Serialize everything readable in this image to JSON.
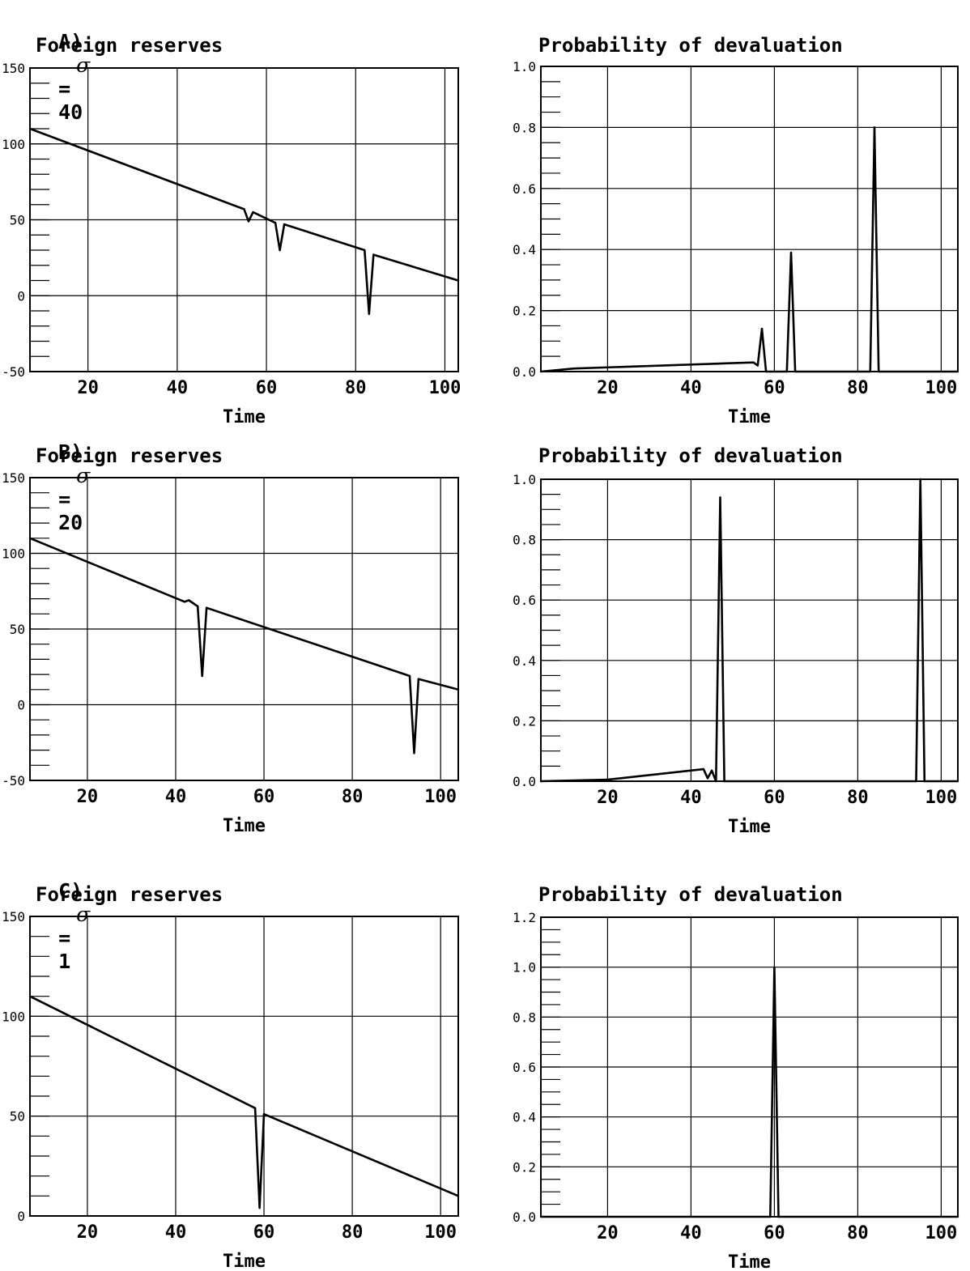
{
  "panels": [
    {
      "label": "A)",
      "sigma_symbol": "σ",
      "equals": "=",
      "sigma_value": "40",
      "charts": [
        {
          "type": "line",
          "title": "Foreign reserves",
          "xlabel": "Time",
          "ylabel": "",
          "xlim": [
            7,
            103
          ],
          "ylim": [
            -50,
            150
          ],
          "xticks": [
            20,
            40,
            60,
            80,
            100
          ],
          "yticks": [
            -50,
            0,
            50,
            100,
            150
          ],
          "ytick_labels": [
            "-50",
            "0",
            "50",
            "100",
            "150"
          ],
          "minor_y_step": 10,
          "grid": true,
          "series": [
            {
              "x": [
                7,
                55,
                56,
                57,
                62,
                63,
                64,
                82,
                83,
                84,
                103
              ],
              "y": [
                110,
                57,
                49,
                55,
                48,
                30,
                47,
                30,
                -12,
                27,
                10
              ]
            }
          ]
        },
        {
          "type": "line",
          "title": "Probability of devaluation",
          "xlabel": "Time",
          "ylabel": "",
          "xlim": [
            4,
            104
          ],
          "ylim": [
            0,
            1.0
          ],
          "xticks": [
            20,
            40,
            60,
            80,
            100
          ],
          "yticks": [
            0,
            0.2,
            0.4,
            0.6,
            0.8,
            1.0
          ],
          "ytick_labels": [
            "0.0",
            "0.2",
            "0.4",
            "0.6",
            "0.8",
            "1.0"
          ],
          "minor_y_step": 0.05,
          "grid": true,
          "series": [
            {
              "x": [
                4,
                12,
                55,
                56,
                57,
                58,
                63,
                64,
                65,
                83,
                84,
                85,
                104
              ],
              "y": [
                0,
                0.01,
                0.03,
                0.02,
                0.14,
                0,
                0,
                0.39,
                0,
                0,
                0.8,
                0,
                0
              ]
            }
          ]
        }
      ]
    },
    {
      "label": "B)",
      "sigma_symbol": "σ",
      "equals": "=",
      "sigma_value": "20",
      "charts": [
        {
          "type": "line",
          "title": "Foreign reserves",
          "xlabel": "Time",
          "ylabel": "",
          "xlim": [
            7,
            104
          ],
          "ylim": [
            -50,
            150
          ],
          "xticks": [
            20,
            40,
            60,
            80,
            100
          ],
          "yticks": [
            -50,
            0,
            50,
            100,
            150
          ],
          "ytick_labels": [
            "-50",
            "0",
            "50",
            "100",
            "150"
          ],
          "minor_y_step": 10,
          "grid": true,
          "series": [
            {
              "x": [
                7,
                42,
                43,
                45,
                46,
                47,
                93,
                94,
                95,
                104
              ],
              "y": [
                110,
                68,
                69,
                65,
                19,
                64,
                19,
                -32,
                17,
                10
              ]
            }
          ]
        },
        {
          "type": "line",
          "title": "Probability of devaluation",
          "xlabel": "Time",
          "ylabel": "",
          "xlim": [
            4,
            104
          ],
          "ylim": [
            0,
            1.0
          ],
          "xticks": [
            20,
            40,
            60,
            80,
            100
          ],
          "yticks": [
            0,
            0.2,
            0.4,
            0.6,
            0.8,
            1.0
          ],
          "ytick_labels": [
            "0.0",
            "0.2",
            "0.4",
            "0.6",
            "0.8",
            "1.0"
          ],
          "minor_y_step": 0.05,
          "grid": true,
          "series": [
            {
              "x": [
                4,
                20,
                43,
                44,
                45,
                46,
                47,
                48,
                94,
                95,
                96,
                104
              ],
              "y": [
                0,
                0.005,
                0.04,
                0.01,
                0.035,
                0,
                0.94,
                0,
                0,
                1.0,
                0,
                0
              ]
            }
          ]
        }
      ]
    },
    {
      "label": "C)",
      "sigma_symbol": "σ",
      "equals": "=",
      "sigma_value": "1",
      "charts": [
        {
          "type": "line",
          "title": "Foreign reserves",
          "xlabel": "Time",
          "ylabel": "",
          "xlim": [
            7,
            104
          ],
          "ylim": [
            0,
            150
          ],
          "xticks": [
            20,
            40,
            60,
            80,
            100
          ],
          "yticks": [
            0,
            50,
            100,
            150
          ],
          "ytick_labels": [
            "0",
            "50",
            "100",
            "150"
          ],
          "minor_y_step": 10,
          "grid": true,
          "series": [
            {
              "x": [
                7,
                58,
                59,
                60,
                104
              ],
              "y": [
                110,
                54,
                4,
                51,
                10
              ]
            }
          ]
        },
        {
          "type": "line",
          "title": "Probability of devaluation",
          "xlabel": "Time",
          "ylabel": "",
          "xlim": [
            4,
            104
          ],
          "ylim": [
            0,
            1.2
          ],
          "xticks": [
            20,
            40,
            60,
            80,
            100
          ],
          "yticks": [
            0,
            0.2,
            0.4,
            0.6,
            0.8,
            1.0,
            1.2
          ],
          "ytick_labels": [
            "0.0",
            "0.2",
            "0.4",
            "0.6",
            "0.8",
            "1.0",
            "1.2"
          ],
          "minor_y_step": 0.05,
          "grid": true,
          "series": [
            {
              "x": [
                4,
                59,
                60,
                61,
                104
              ],
              "y": [
                0,
                0,
                1.0,
                0,
                0
              ]
            }
          ]
        }
      ]
    }
  ],
  "colors": {
    "line": "#000000",
    "grid": "#000000",
    "background": "#ffffff"
  }
}
